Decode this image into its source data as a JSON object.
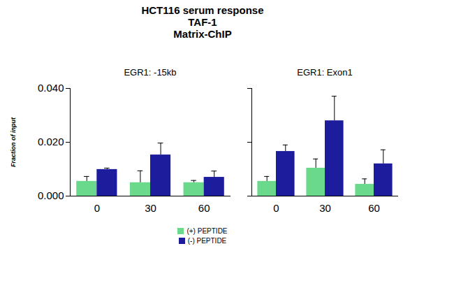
{
  "chart_data": {
    "type": "bar",
    "title": [
      "HCT116 serum response",
      "TAF-1",
      "Matrix-ChIP"
    ],
    "y_label": "Fraction of input",
    "categories": [
      "0",
      "30",
      "60"
    ],
    "ylim": [
      0,
      0.04
    ],
    "yticks": [
      {
        "value": 0,
        "label": "0.000"
      },
      {
        "value": 0.02,
        "label": "0.020"
      },
      {
        "value": 0.04,
        "label": "0.040"
      }
    ],
    "legend": "bottom",
    "panels": [
      {
        "subtitle": "EGR1: -15kb",
        "series": [
          {
            "name": "(+) PEPTIDE",
            "color": "#6ad98c",
            "values": [
              0.0055,
              0.005,
              0.005
            ],
            "errors": [
              0.0018,
              0.0044,
              0.0008
            ]
          },
          {
            "name": "(-) PEPTIDE",
            "color": "#1c1c9c",
            "values": [
              0.0099,
              0.0153,
              0.007
            ],
            "errors": [
              0.0005,
              0.0044,
              0.0023
            ]
          }
        ]
      },
      {
        "subtitle": "EGR1: Exon1",
        "tick_labels": "x",
        "series": [
          {
            "name": "(+) PEPTIDE",
            "color": "#6ad98c",
            "values": [
              0.0055,
              0.0104,
              0.0044
            ],
            "errors": [
              0.0018,
              0.0034,
              0.002
            ]
          },
          {
            "name": "(-) PEPTIDE",
            "color": "#1c1c9c",
            "values": [
              0.0166,
              0.028,
              0.012
            ],
            "errors": [
              0.0024,
              0.0091,
              0.0052
            ]
          }
        ]
      }
    ]
  }
}
